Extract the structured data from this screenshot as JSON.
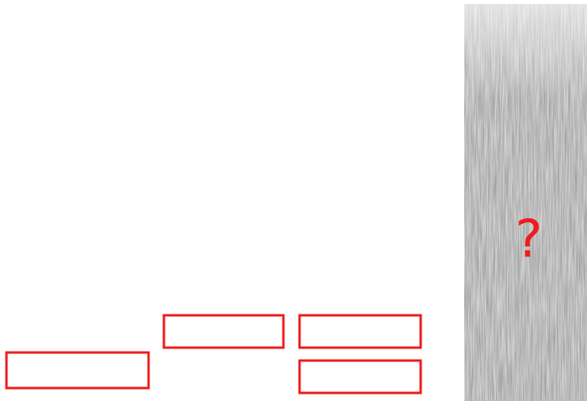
{
  "annotation": "?"
}
